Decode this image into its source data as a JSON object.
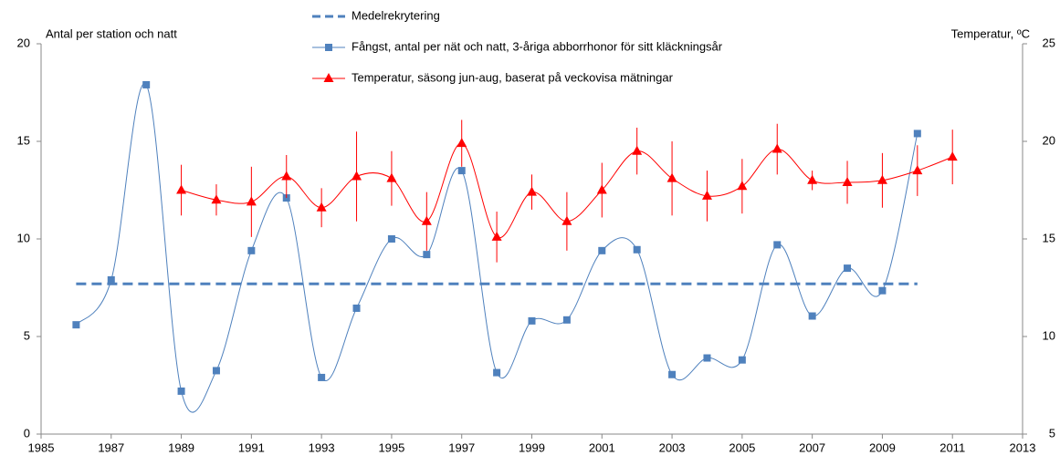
{
  "chart_data": {
    "type": "line",
    "ylabel": "Antal per station och natt",
    "y2label": "Temperatur, ºC",
    "xlim": [
      1985,
      2013
    ],
    "xticks": [
      1985,
      1987,
      1989,
      1991,
      1993,
      1995,
      1997,
      1999,
      2001,
      2003,
      2005,
      2007,
      2009,
      2011,
      2013
    ],
    "ylim": [
      0,
      20
    ],
    "yticks": [
      0,
      5,
      10,
      15,
      20
    ],
    "y2lim": [
      5,
      25
    ],
    "y2ticks": [
      5,
      10,
      15,
      20,
      25
    ],
    "grid": false,
    "legend": "top",
    "series": [
      {
        "name": "Medelrekrytering",
        "color": "#4f81bd",
        "line_style": "dashed",
        "marker": "none",
        "smooth": false,
        "x": [
          1986,
          2010
        ],
        "values": [
          7.7,
          7.7
        ]
      },
      {
        "name": "Fångst, antal per nät och natt, 3-åriga abborrhonor för sitt kläckningsår",
        "color": "#4f81bd",
        "line_style": "solid",
        "marker": "square",
        "smooth": true,
        "x": [
          1986,
          1987,
          1988,
          1989,
          1990,
          1991,
          1992,
          1993,
          1994,
          1995,
          1996,
          1997,
          1998,
          1999,
          2000,
          2001,
          2002,
          2003,
          2004,
          2005,
          2006,
          2007,
          2008,
          2009,
          2010
        ],
        "values": [
          5.6,
          7.9,
          17.9,
          2.2,
          3.25,
          9.4,
          12.1,
          2.9,
          6.45,
          10.0,
          9.2,
          13.5,
          3.15,
          5.8,
          5.85,
          9.4,
          9.45,
          3.05,
          3.9,
          3.8,
          9.7,
          6.05,
          8.5,
          7.35,
          15.4
        ]
      },
      {
        "name": "Temperatur, säsong jun-aug, baserat på veckovisa mätningar",
        "color": "#ff0000",
        "line_style": "solid",
        "marker": "triangle",
        "smooth": true,
        "axis": "y2",
        "x": [
          1989,
          1990,
          1991,
          1992,
          1993,
          1994,
          1995,
          1996,
          1997,
          1998,
          1999,
          2000,
          2001,
          2002,
          2003,
          2004,
          2005,
          2006,
          2007,
          2008,
          2009,
          2010,
          2011
        ],
        "values": [
          17.5,
          17.0,
          16.9,
          18.2,
          16.6,
          18.2,
          18.1,
          15.9,
          19.9,
          15.1,
          17.4,
          15.9,
          17.5,
          19.5,
          18.1,
          17.2,
          17.7,
          19.6,
          18.0,
          17.9,
          18.0,
          18.5,
          19.2
        ],
        "errors": [
          1.3,
          0.8,
          1.8,
          1.1,
          1.0,
          2.3,
          1.4,
          1.5,
          1.2,
          1.3,
          0.9,
          1.5,
          1.4,
          1.2,
          1.9,
          1.3,
          1.4,
          1.3,
          0.5,
          1.1,
          1.4,
          1.3,
          1.4
        ]
      }
    ]
  }
}
